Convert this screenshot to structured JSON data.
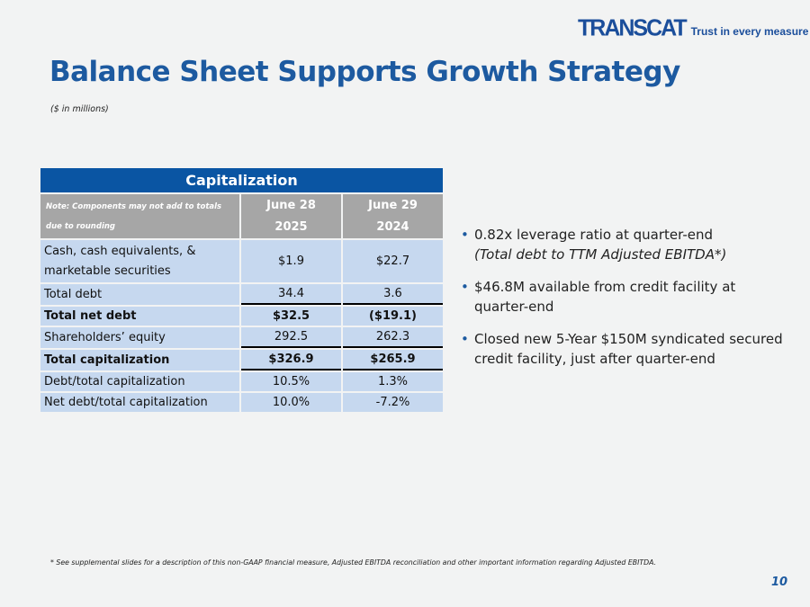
{
  "logo": {
    "word": "TRANSCAT",
    "tagline": "Trust in every measure"
  },
  "title": "Balance Sheet Supports Growth Strategy",
  "subtitle": "($ in millions)",
  "table": {
    "title": "Capitalization",
    "note_line1": "Note: Components may not add to totals",
    "note_line2": "due to rounding",
    "columns": [
      {
        "line1": "June 28",
        "line2": "2025"
      },
      {
        "line1": "June 29",
        "line2": "2024"
      }
    ],
    "rows": [
      {
        "label_line1": "Cash, cash equivalents, &",
        "label_line2": "marketable securities",
        "values": [
          "$1.9",
          "$22.7"
        ]
      },
      {
        "label": "Total debt",
        "values": [
          "34.4",
          "3.6"
        ]
      },
      {
        "label": "Total net debt",
        "values": [
          "$32.5",
          "($19.1)"
        ]
      },
      {
        "label": "Shareholders’ equity",
        "values": [
          "292.5",
          "262.3"
        ]
      },
      {
        "label": "Total capitalization",
        "values": [
          "$326.9",
          "$265.9"
        ]
      },
      {
        "label": "Debt/total capitalization",
        "values": [
          "10.5%",
          "1.3%"
        ]
      },
      {
        "label": "Net debt/total capitalization",
        "values": [
          "10.0%",
          "-7.2%"
        ]
      }
    ]
  },
  "bullets": [
    {
      "text": "0.82x leverage ratio at quarter-end",
      "italic": "(Total debt to TTM Adjusted EBITDA*)"
    },
    {
      "text": "$46.8M available from credit facility at quarter-end"
    },
    {
      "text": "Closed new 5-Year $150M syndicated secured credit facility, just after quarter-end"
    }
  ],
  "footnote": "* See supplemental slides for a description of this non-GAAP financial measure, Adjusted EBITDA reconciliation and other important information regarding Adjusted EBITDA.",
  "page_number": "10",
  "colors": {
    "brand_blue": "#1d5aa0",
    "header_blue": "#0a55a3",
    "cell_blue": "#c6d8ef",
    "header_gray": "#a6a6a6"
  }
}
